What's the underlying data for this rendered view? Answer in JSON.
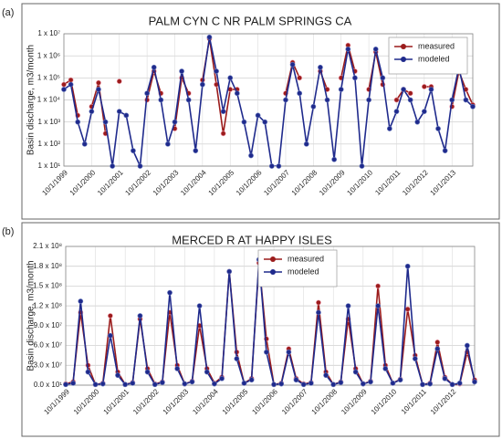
{
  "chart_data": [
    {
      "type": "line",
      "panel_label": "(a)",
      "title": "PALM CYN C NR PALM SPRINGS CA",
      "y_label": "Basin discharge, m3/month",
      "log_scale": true,
      "grid": true,
      "legend_position": "upper right",
      "ylim": [
        10,
        10000000
      ],
      "yticks": [
        {
          "value": 10,
          "label": "1 x 10¹"
        },
        {
          "value": 100,
          "label": "1 x 10²"
        },
        {
          "value": 1000,
          "label": "1 x 10³"
        },
        {
          "value": 10000,
          "label": "1 x 10⁴"
        },
        {
          "value": 100000,
          "label": "1 x 10⁵"
        },
        {
          "value": 1000000,
          "label": "1 x 10⁶"
        },
        {
          "value": 10000000,
          "label": "1 x 10⁷"
        }
      ],
      "categories": [
        "10/1/1999",
        null,
        null,
        null,
        "10/1/2000",
        null,
        null,
        null,
        "10/1/2001",
        null,
        null,
        null,
        "10/1/2002",
        null,
        null,
        null,
        "10/1/2003",
        null,
        null,
        null,
        "10/1/2004",
        null,
        null,
        null,
        "10/1/2005",
        null,
        null,
        null,
        "10/1/2006",
        null,
        null,
        null,
        "10/1/2007",
        null,
        null,
        null,
        "10/1/2008",
        null,
        null,
        null,
        "10/1/2009",
        null,
        null,
        null,
        "10/1/2010",
        null,
        null,
        null,
        "10/1/2011",
        null,
        null,
        null,
        "10/1/2012",
        null,
        null,
        null,
        "10/1/2013",
        null,
        null,
        null
      ],
      "series": [
        {
          "name": "measured",
          "color": "#9b1c1c",
          "values": [
            50000,
            80000,
            2000,
            null,
            5000,
            60000,
            300,
            null,
            70000,
            null,
            null,
            null,
            10000,
            200000,
            20000,
            null,
            500,
            100000,
            20000,
            null,
            80000,
            6000000,
            50000,
            300,
            30000,
            30000,
            null,
            null,
            null,
            null,
            null,
            null,
            20000,
            500000,
            100000,
            null,
            null,
            200000,
            30000,
            null,
            100000,
            3000000,
            200000,
            null,
            30000,
            1500000,
            50000,
            null,
            10000,
            30000,
            20000,
            null,
            40000,
            40000,
            null,
            null,
            5000,
            200000,
            30000,
            6000
          ]
        },
        {
          "name": "modeled",
          "color": "#1f2a8c",
          "values": [
            30000,
            50000,
            1000,
            100,
            3000,
            30000,
            1000,
            10,
            3000,
            2000,
            50,
            10,
            20000,
            300000,
            10000,
            100,
            1000,
            200000,
            10000,
            50,
            50000,
            7000000,
            200000,
            3000,
            100000,
            20000,
            1000,
            30,
            2000,
            1000,
            10,
            10,
            10000,
            400000,
            20000,
            100,
            5000,
            300000,
            10000,
            20,
            30000,
            2000000,
            100000,
            10,
            10000,
            2000000,
            100000,
            500,
            3000,
            30000,
            10000,
            1000,
            3000,
            30000,
            500,
            50,
            10000,
            300000,
            10000,
            5000
          ]
        }
      ]
    },
    {
      "type": "line",
      "panel_label": "(b)",
      "title": "MERCED R AT HAPPY ISLES",
      "y_label": "Basin discharge, m3/month",
      "log_scale": false,
      "grid": true,
      "legend_position": "upper center",
      "ylim": [
        0,
        210000000
      ],
      "yticks": [
        {
          "value": 0,
          "label": "0.0 x 10¹"
        },
        {
          "value": 30000000,
          "label": "3.0 x 10⁷"
        },
        {
          "value": 60000000,
          "label": "6.0 x 10⁷"
        },
        {
          "value": 90000000,
          "label": "9.0 x 10⁷"
        },
        {
          "value": 120000000,
          "label": "1.2 x 10⁸"
        },
        {
          "value": 150000000,
          "label": "1.5 x 10⁸"
        },
        {
          "value": 180000000,
          "label": "1.8 x 10⁸"
        },
        {
          "value": 210000000,
          "label": "2.1 x 10⁸"
        }
      ],
      "categories": [
        "10/1/1999",
        null,
        null,
        null,
        "10/1/2000",
        null,
        null,
        null,
        "10/1/2001",
        null,
        null,
        null,
        "10/1/2002",
        null,
        null,
        null,
        "10/1/2003",
        null,
        null,
        null,
        "10/1/2004",
        null,
        null,
        null,
        "10/1/2005",
        null,
        null,
        null,
        "10/1/2006",
        null,
        null,
        null,
        "10/1/2007",
        null,
        null,
        null,
        "10/1/2008",
        null,
        null,
        null,
        "10/1/2009",
        null,
        null,
        null,
        "10/1/2010",
        null,
        null,
        null,
        "10/1/2011",
        null,
        null,
        null,
        "10/1/2012",
        null,
        null,
        null
      ],
      "series": [
        {
          "name": "measured",
          "color": "#9b1c1c",
          "values": [
            2000000,
            5000000,
            110000000,
            30000000,
            1000000,
            3000000,
            105000000,
            20000000,
            1000000,
            4000000,
            100000000,
            25000000,
            2000000,
            5000000,
            110000000,
            30000000,
            2000000,
            6000000,
            90000000,
            25000000,
            3000000,
            12000000,
            172000000,
            50000000,
            3000000,
            10000000,
            185000000,
            70000000,
            1000000,
            3000000,
            55000000,
            10000000,
            2000000,
            4000000,
            125000000,
            20000000,
            1000000,
            5000000,
            100000000,
            25000000,
            2000000,
            6000000,
            150000000,
            30000000,
            3000000,
            9000000,
            115000000,
            45000000,
            1000000,
            3000000,
            65000000,
            12000000,
            1000000,
            2000000,
            50000000,
            8000000
          ]
        },
        {
          "name": "modeled",
          "color": "#1f2a8c",
          "values": [
            1000000,
            3000000,
            127000000,
            20000000,
            1000000,
            2000000,
            75000000,
            15000000,
            1000000,
            3000000,
            105000000,
            20000000,
            1000000,
            4000000,
            140000000,
            25000000,
            2000000,
            5000000,
            120000000,
            20000000,
            2000000,
            10000000,
            172000000,
            40000000,
            3000000,
            8000000,
            190000000,
            50000000,
            1000000,
            2000000,
            50000000,
            8000000,
            1000000,
            3000000,
            110000000,
            15000000,
            1000000,
            4000000,
            120000000,
            20000000,
            2000000,
            5000000,
            120000000,
            25000000,
            3000000,
            8000000,
            180000000,
            40000000,
            1000000,
            2000000,
            55000000,
            10000000,
            1000000,
            3000000,
            60000000,
            5000000
          ]
        }
      ]
    }
  ]
}
